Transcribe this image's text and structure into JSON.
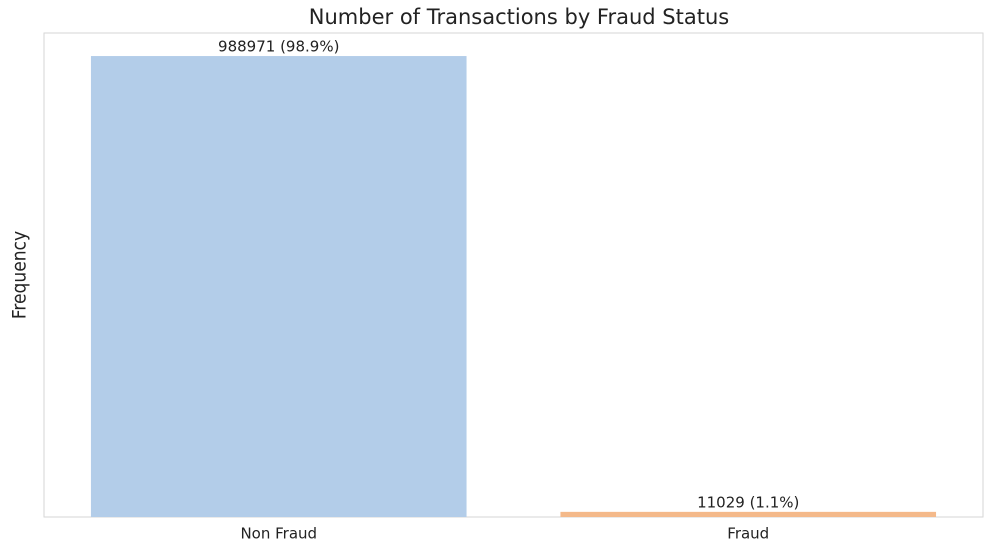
{
  "chart_data": {
    "type": "bar",
    "title": "Number of Transactions by Fraud Status",
    "y_label": "Frequency",
    "categories": [
      "Non Fraud",
      "Fraud"
    ],
    "values": [
      988971,
      11029
    ],
    "value_labels": [
      "988971 (98.9%)",
      "11029 (1.1%)"
    ],
    "colors": [
      "#b3cde9",
      "#f4b98a"
    ],
    "ylim": [
      0,
      1038420
    ],
    "grid": false
  }
}
